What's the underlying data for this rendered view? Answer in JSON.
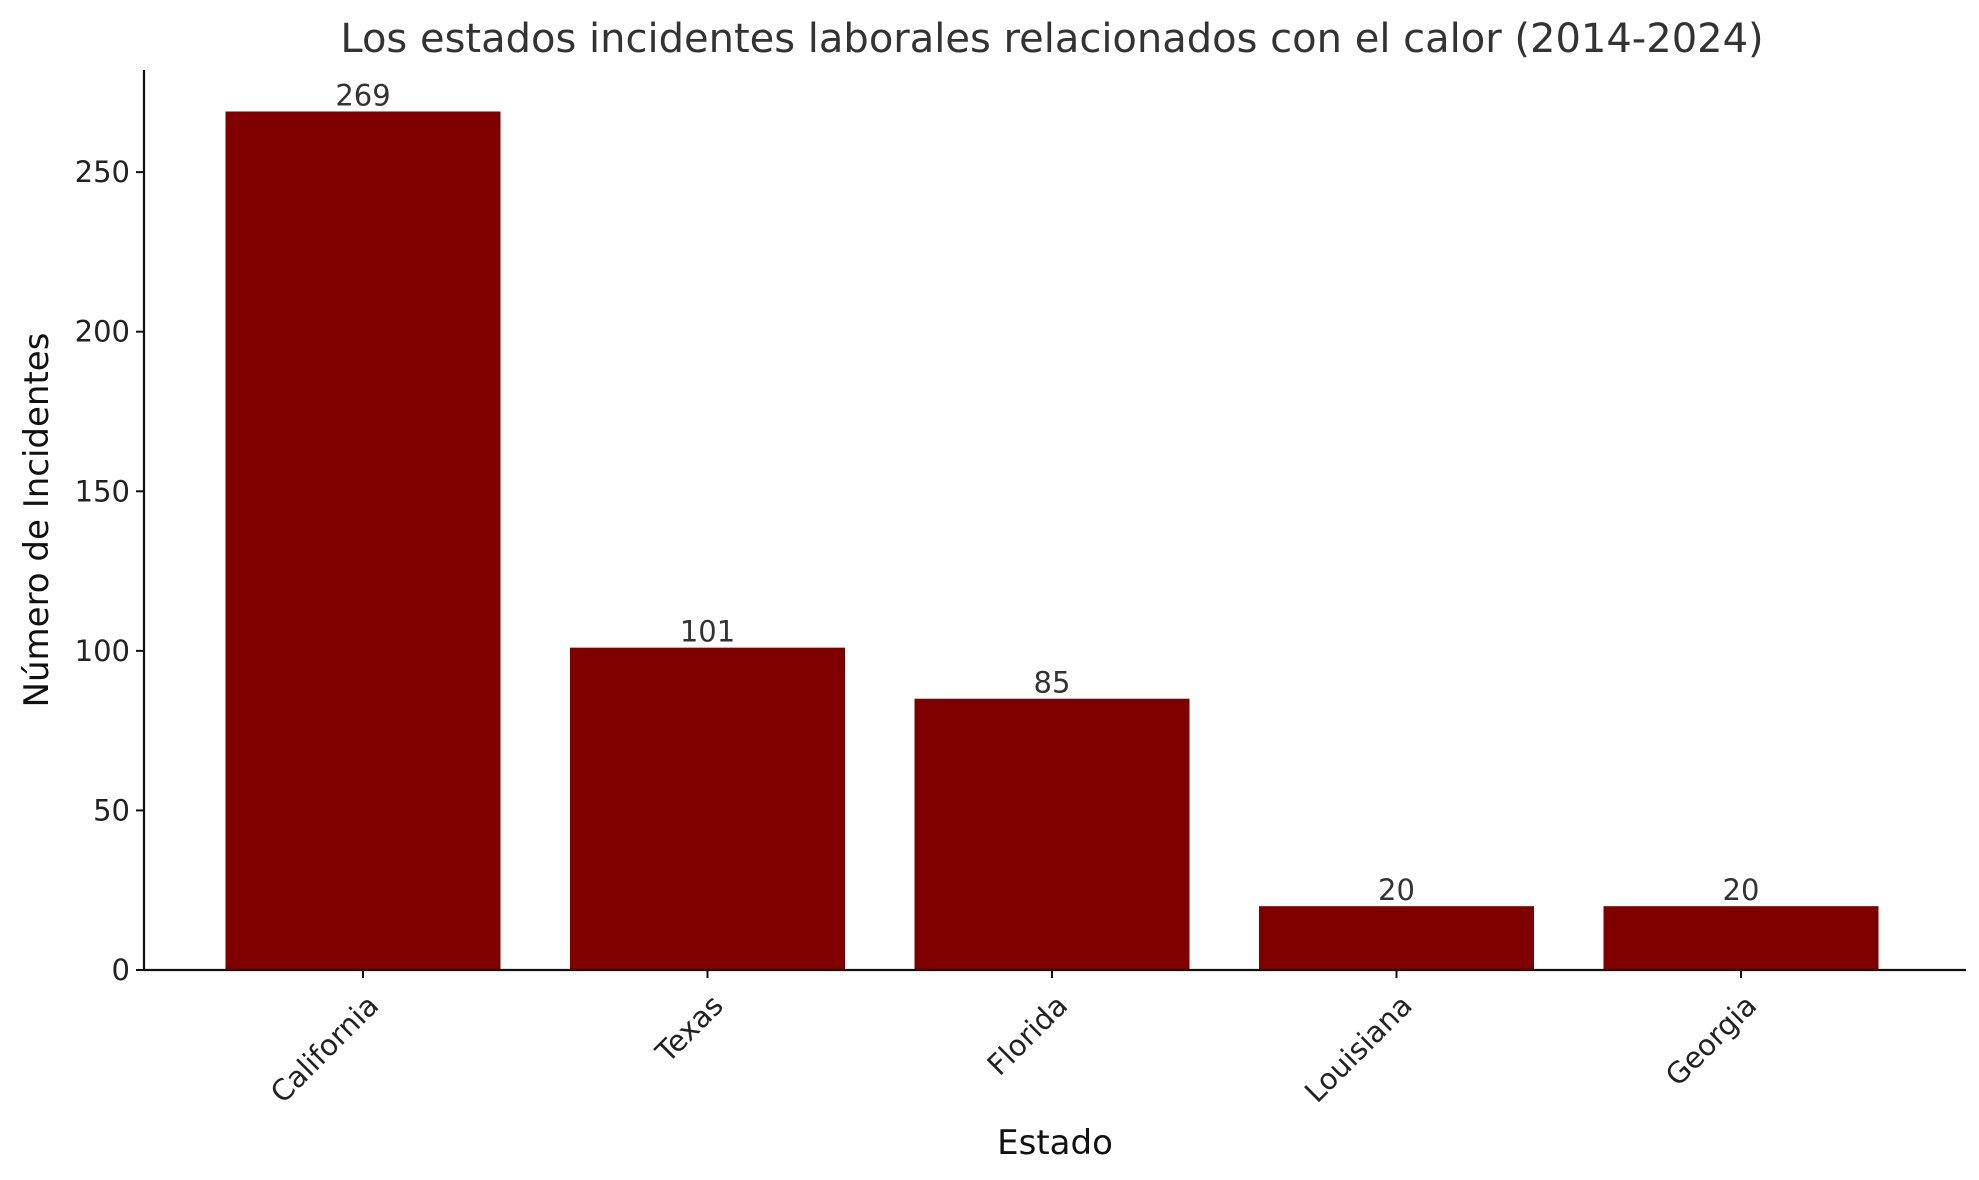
{
  "chart_data": {
    "type": "bar",
    "title": "Los estados incidentes laborales relacionados con el calor (2014-2024)",
    "xlabel": "Estado",
    "ylabel": "Número de Incidentes",
    "categories": [
      "California",
      "Texas",
      "Florida",
      "Louisiana",
      "Georgia"
    ],
    "values": [
      269,
      101,
      85,
      20,
      20
    ],
    "data_labels": [
      "269",
      "101",
      "85",
      "20",
      "20"
    ],
    "yticks": [
      0,
      50,
      100,
      150,
      200,
      250
    ],
    "ylim": [
      0,
      282
    ],
    "bar_color": "#800000",
    "grid": false,
    "legend": "none"
  }
}
